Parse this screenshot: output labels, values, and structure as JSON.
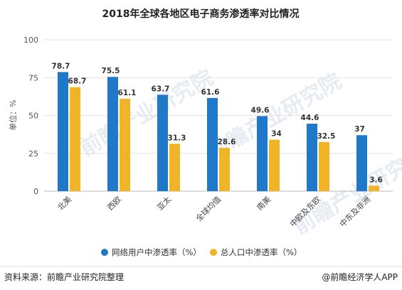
{
  "chart_data": {
    "type": "bar",
    "title": "2018年全球各地区电子商务渗透率对比情况",
    "ylabel": "单位：%",
    "ylim": [
      0,
      100
    ],
    "yticks": [
      0,
      25,
      50,
      75,
      100
    ],
    "categories": [
      "北美",
      "西欧",
      "亚太",
      "全球均值",
      "南美",
      "中欧及东欧",
      "中东及非洲"
    ],
    "series": [
      {
        "name": "网络用户中渗透率（%）",
        "color": "#1f78c8",
        "values": [
          78.7,
          75.5,
          63.7,
          61.6,
          49.6,
          44.6,
          37
        ]
      },
      {
        "name": "总人口中渗透率（%）",
        "color": "#f0b429",
        "values": [
          68.7,
          61.1,
          31.3,
          28.6,
          34,
          32.5,
          3.6
        ]
      }
    ],
    "legend_position": "bottom"
  },
  "footer": {
    "source": "资料来源：前瞻产业研究院整理",
    "brand": "@前瞻经济学人APP"
  }
}
